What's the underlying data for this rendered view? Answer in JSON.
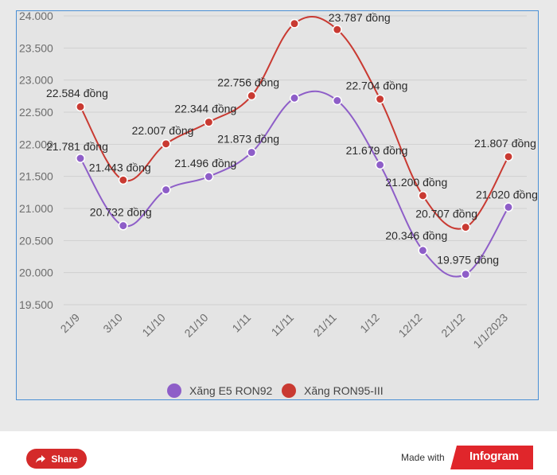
{
  "chart_data": {
    "type": "line",
    "title": "",
    "xlabel": "",
    "ylabel": "",
    "categories": [
      "21/9",
      "3/10",
      "11/10",
      "21/10",
      "1/11",
      "11/11",
      "21/11",
      "1/12",
      "12/12",
      "21/12",
      "1/1/2023"
    ],
    "ylim": [
      19500,
      24000
    ],
    "yticks": [
      {
        "value": 24000,
        "label": "24.000"
      },
      {
        "value": 23500,
        "label": "23.500"
      },
      {
        "value": 23000,
        "label": "23.000"
      },
      {
        "value": 22500,
        "label": "22.500"
      },
      {
        "value": 22000,
        "label": "22.000"
      },
      {
        "value": 21500,
        "label": "21.500"
      },
      {
        "value": 21000,
        "label": "21.000"
      },
      {
        "value": 20500,
        "label": "20.500"
      },
      {
        "value": 20000,
        "label": "20.000"
      },
      {
        "value": 19500,
        "label": "19.500"
      }
    ],
    "grid": true,
    "legend_position": "bottom-center",
    "series": [
      {
        "name": "Xăng E5 RON92",
        "color": "#8e5ec8",
        "values": [
          21781,
          20732,
          21290,
          21496,
          21873,
          22720,
          22680,
          21679,
          20346,
          19975,
          21020
        ],
        "labels": [
          "21.781 đồng",
          "20.732 đồng",
          "",
          "21.496 đồng",
          "21.873 đồng",
          "",
          "",
          "21.679 đồng",
          "20.346 đồng",
          "19.975 đồng",
          "21.020 đồng"
        ]
      },
      {
        "name": "Xăng RON95-III",
        "color": "#c93a32",
        "values": [
          22584,
          21443,
          22007,
          22344,
          22756,
          23880,
          23787,
          22704,
          21200,
          20707,
          21807
        ],
        "labels": [
          "22.584 đồng",
          "21.443 đồng",
          "22.007 đồng",
          "22.344 đồng",
          "22.756 đồng",
          "",
          "23.787 đồng",
          "22.704 đồng",
          "21.200 đồng",
          "20.707 đồng",
          "21.807 đồng"
        ]
      }
    ]
  },
  "footer": {
    "share_label": "Share",
    "made_with": "Made with",
    "brand": "Infogram",
    "brand_color": "#e0262b",
    "share_color": "#d42a2a"
  }
}
